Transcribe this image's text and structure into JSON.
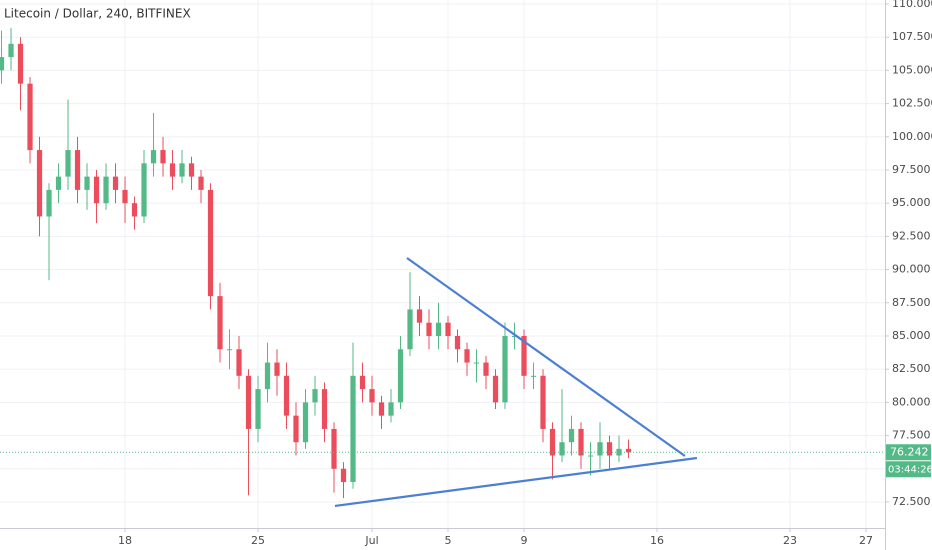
{
  "chart_data": {
    "type": "candlestick",
    "title": "Litecoin / Dollar, 240, BITFINEX",
    "countdown": "03:44:26",
    "up_color": "#53b987",
    "down_color": "#eb4d5c",
    "grid": true,
    "x": [
      11.5,
      12,
      12.5,
      13,
      13.5,
      14,
      14.5,
      15,
      15.5,
      16,
      16.5,
      17,
      17.5,
      18,
      18.5,
      19,
      19.5,
      20,
      20.5,
      21,
      21.5,
      22,
      22.5,
      23,
      23.5,
      24,
      24.5,
      25,
      25.5,
      26,
      26.5,
      27,
      27.5,
      28,
      28.5,
      29,
      29.5,
      30,
      30.5,
      31,
      31.5,
      32,
      32.5,
      33,
      33.5,
      34,
      34.5,
      35,
      35.5,
      36,
      36.5,
      37,
      37.5,
      38,
      38.5,
      39,
      39.5,
      40,
      40.5,
      41,
      41.5,
      42,
      42.5,
      43,
      43.5,
      44,
      44.5
    ],
    "open": [
      105,
      106,
      107,
      104,
      99,
      94,
      96,
      97,
      99,
      96,
      97,
      95,
      97,
      96,
      95,
      94,
      98,
      99,
      98,
      97,
      98,
      97,
      96,
      88,
      84,
      84,
      82,
      78,
      81,
      83,
      82,
      79,
      77,
      80,
      81,
      78,
      75,
      74,
      82,
      81,
      80,
      79,
      80,
      84,
      87,
      86,
      85,
      86,
      85,
      84,
      83,
      83,
      82,
      80,
      85,
      85,
      82,
      82,
      78,
      76,
      77,
      78,
      76,
      76,
      77,
      76,
      76.5
    ],
    "high": [
      108,
      108.2,
      107.5,
      104.5,
      100,
      96.5,
      98,
      102.8,
      100,
      98,
      97.5,
      98,
      98,
      97,
      95.5,
      99,
      101.8,
      100,
      99,
      99,
      98.5,
      97.5,
      96.5,
      89,
      85.5,
      85,
      82.5,
      82,
      84.5,
      84,
      83,
      80,
      81,
      82,
      81.5,
      78.5,
      75.5,
      84.5,
      83,
      82,
      80.5,
      81,
      85,
      89.8,
      88,
      87,
      87.5,
      86.5,
      85.5,
      84.5,
      84,
      83.5,
      82.5,
      86,
      86,
      85.5,
      83,
      82.5,
      78.5,
      81,
      79,
      78.5,
      77,
      78.5,
      77.5,
      77.5,
      77.2
    ],
    "low": [
      104,
      105,
      102,
      98,
      92.5,
      89.2,
      95,
      96,
      95,
      94.5,
      93.5,
      94.5,
      95,
      93.5,
      93,
      93.5,
      97,
      97,
      96,
      96.5,
      96,
      95,
      87,
      83,
      82.5,
      81,
      73,
      77,
      80,
      80.5,
      78,
      76,
      76.5,
      79,
      77,
      73.2,
      72.8,
      73.5,
      80,
      79,
      78,
      78.5,
      79.5,
      83.5,
      85,
      84,
      84,
      84,
      83,
      82,
      81.5,
      81,
      79.5,
      79.5,
      84,
      81,
      81,
      77,
      74.2,
      75.5,
      76,
      75,
      74.5,
      75,
      75,
      75.5,
      75.8
    ],
    "close": [
      106,
      107,
      104,
      99,
      94,
      96,
      97,
      99,
      96,
      97,
      95,
      97,
      96,
      95,
      94,
      98,
      99,
      98,
      97,
      98,
      97,
      96,
      88,
      84,
      84,
      82,
      78,
      81,
      83,
      82,
      79,
      77,
      80,
      81,
      78,
      75,
      74,
      82,
      81,
      80,
      79,
      80,
      84,
      87,
      86,
      85,
      86,
      85,
      84,
      83,
      83,
      82,
      80,
      85,
      85,
      82,
      82,
      78,
      76,
      77,
      78,
      76,
      76,
      77,
      76,
      76.5,
      76.242
    ],
    "xlim": [
      11.42,
      58
    ],
    "xticks": [
      {
        "value": 18,
        "label": "18"
      },
      {
        "value": 25,
        "label": "25"
      },
      {
        "value": 31,
        "label": "Jul"
      },
      {
        "value": 35,
        "label": "5"
      },
      {
        "value": 39,
        "label": "9"
      },
      {
        "value": 46,
        "label": "16"
      },
      {
        "value": 53,
        "label": "23"
      },
      {
        "value": 57,
        "label": "27"
      }
    ],
    "ylim": [
      70.54,
      110.3
    ],
    "yticks": [
      {
        "value": 72.5,
        "label": "72.500"
      },
      {
        "value": 75,
        "label": "75.000"
      },
      {
        "value": 77.5,
        "label": "77.500"
      },
      {
        "value": 80,
        "label": "80.000"
      },
      {
        "value": 82.5,
        "label": "82.500"
      },
      {
        "value": 85,
        "label": "85.000"
      },
      {
        "value": 87.5,
        "label": "87.500"
      },
      {
        "value": 90,
        "label": "90.000"
      },
      {
        "value": 92.5,
        "label": "92.500"
      },
      {
        "value": 95,
        "label": "95.000"
      },
      {
        "value": 97.5,
        "label": "97.500"
      },
      {
        "value": 100,
        "label": "100.000"
      },
      {
        "value": 102.5,
        "label": "102.500"
      },
      {
        "value": 105,
        "label": "105.000"
      },
      {
        "value": 107.5,
        "label": "107.500"
      },
      {
        "value": 110,
        "label": "110.000"
      }
    ],
    "trendlines": [
      {
        "color": "#4a7fd4",
        "x": [
          32.84,
          47.47
        ],
        "y": [
          90.87,
          75.96
        ]
      },
      {
        "color": "#4a7fd4",
        "x": [
          29.05,
          48.1
        ],
        "y": [
          72.2,
          75.81
        ]
      }
    ]
  }
}
